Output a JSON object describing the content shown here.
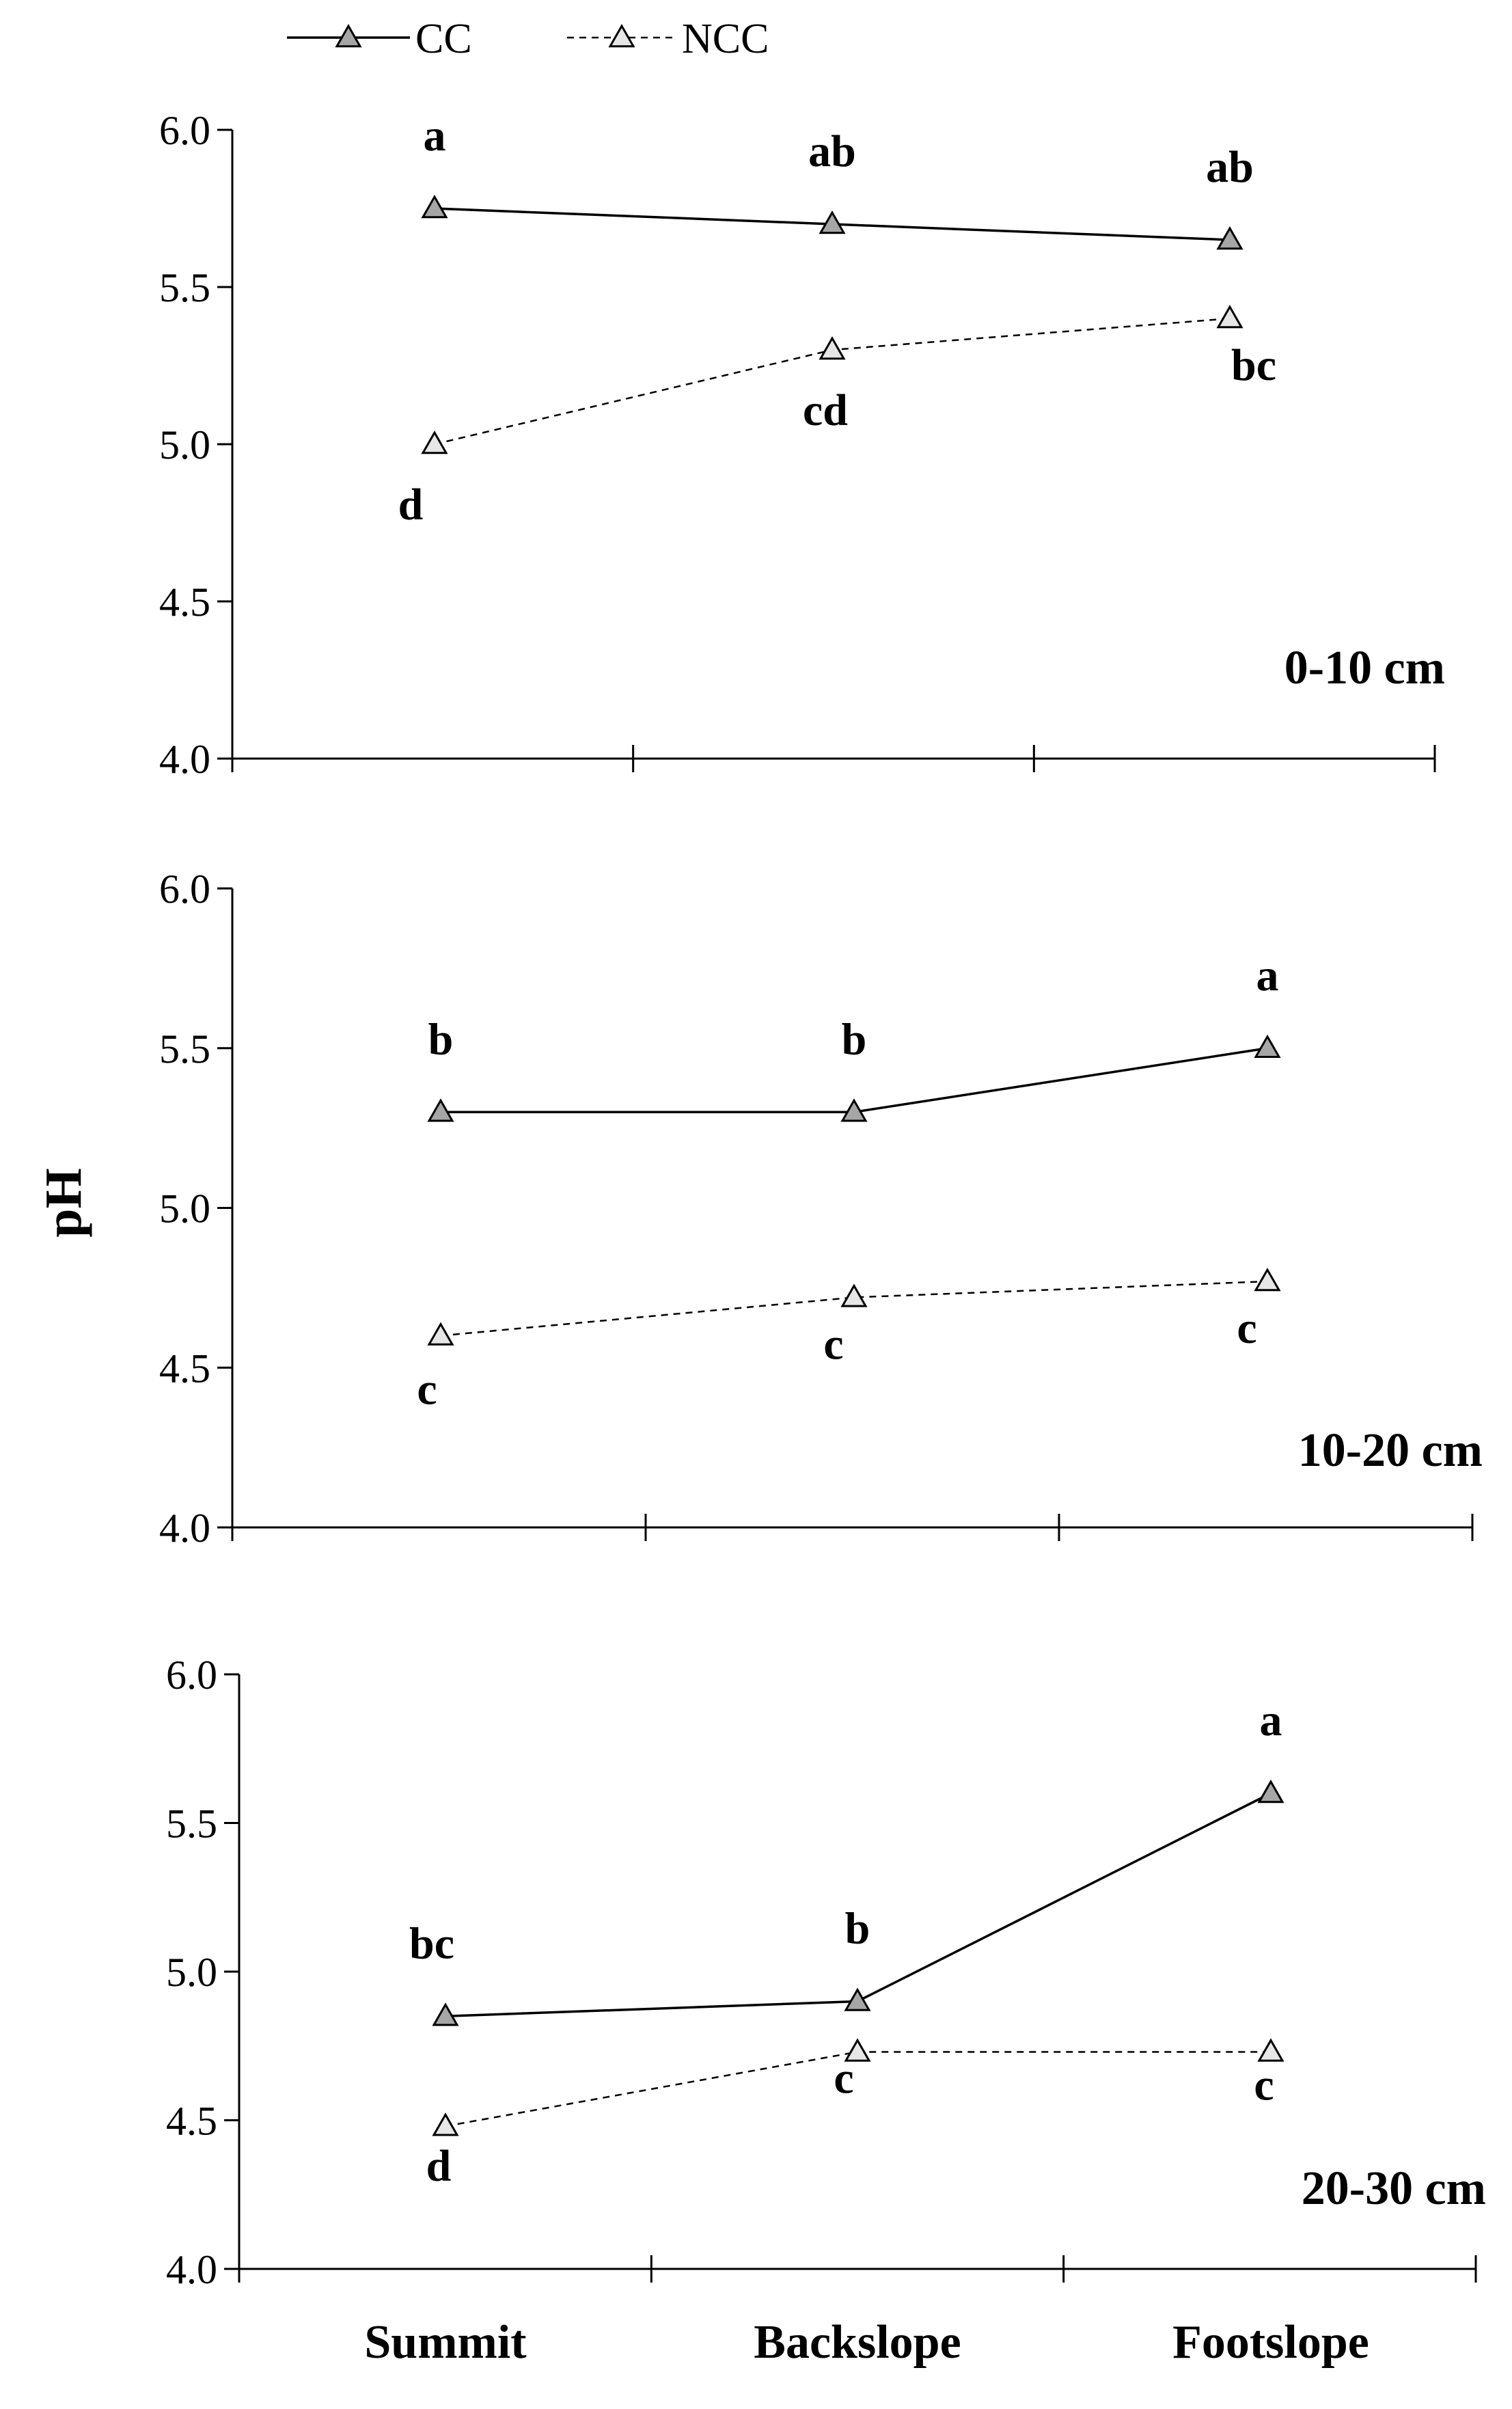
{
  "chart_data": [
    {
      "type": "line",
      "panel_label": "0-10 cm",
      "ylabel": "pH",
      "categories": [
        "Summit",
        "Backslope",
        "Footslope"
      ],
      "ylim": [
        4.0,
        6.0
      ],
      "yticks": [
        "4.0",
        "4.5",
        "5.0",
        "5.5",
        "6.0"
      ],
      "series": [
        {
          "name": "CC",
          "values": [
            5.75,
            5.7,
            5.65
          ],
          "letters": [
            "a",
            "ab",
            "ab"
          ]
        },
        {
          "name": "NCC",
          "values": [
            5.0,
            5.3,
            5.4
          ],
          "letters": [
            "d",
            "cd",
            "bc"
          ]
        }
      ]
    },
    {
      "type": "line",
      "panel_label": "10-20 cm",
      "ylabel": "pH",
      "categories": [
        "Summit",
        "Backslope",
        "Footslope"
      ],
      "ylim": [
        4.0,
        6.0
      ],
      "yticks": [
        "4.0",
        "4.5",
        "5.0",
        "5.5",
        "6.0"
      ],
      "series": [
        {
          "name": "CC",
          "values": [
            5.3,
            5.3,
            5.5
          ],
          "letters": [
            "b",
            "b",
            "a"
          ]
        },
        {
          "name": "NCC",
          "values": [
            4.6,
            4.72,
            4.77
          ],
          "letters": [
            "c",
            "c",
            "c"
          ]
        }
      ]
    },
    {
      "type": "line",
      "panel_label": "20-30 cm",
      "ylabel": "pH",
      "categories": [
        "Summit",
        "Backslope",
        "Footslope"
      ],
      "ylim": [
        4.0,
        6.0
      ],
      "yticks": [
        "4.0",
        "4.5",
        "5.0",
        "5.5",
        "6.0"
      ],
      "series": [
        {
          "name": "CC",
          "values": [
            4.85,
            4.9,
            5.6
          ],
          "letters": [
            "bc",
            "b",
            "a"
          ]
        },
        {
          "name": "NCC",
          "values": [
            4.48,
            4.73,
            4.73
          ],
          "letters": [
            "d",
            "c",
            "c"
          ]
        }
      ]
    }
  ],
  "legend": {
    "placement": "top-left",
    "items": [
      {
        "name": "CC",
        "style": "solid"
      },
      {
        "name": "NCC",
        "style": "dashed"
      }
    ]
  },
  "colors": {
    "marker_fill_cc": "#a6a6a6",
    "marker_fill_ncc": "#e6e6e6",
    "line": "#000000"
  },
  "ylabel": "pH"
}
